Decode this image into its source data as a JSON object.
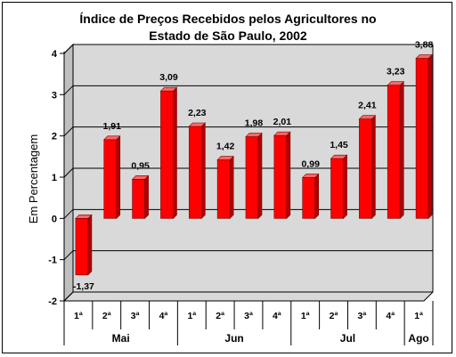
{
  "chart_data": {
    "type": "bar",
    "title_line1": "Índice de Preços Recebidos pelos Agricultores no",
    "title_line2": "Estado de São Paulo, 2002",
    "ylabel": "Em Percentagem",
    "ylim": [
      -2,
      4
    ],
    "yticks": [
      -2,
      -1,
      0,
      1,
      2,
      3,
      4
    ],
    "grid": true,
    "categories": [
      "1ª",
      "2ª",
      "3ª",
      "4ª",
      "1ª",
      "2ª",
      "3ª",
      "4ª",
      "1ª",
      "2ª",
      "3ª",
      "4ª",
      "1ª"
    ],
    "groups": [
      {
        "label": "Mai",
        "count": 4
      },
      {
        "label": "Jun",
        "count": 4
      },
      {
        "label": "Jul",
        "count": 4
      },
      {
        "label": "Ago",
        "count": 1
      }
    ],
    "values": [
      -1.37,
      1.91,
      0.95,
      3.09,
      2.23,
      1.42,
      1.98,
      2.01,
      0.99,
      1.45,
      2.41,
      3.23,
      3.88
    ],
    "data_labels": [
      "-1,37",
      "1,91",
      "0,95",
      "3,09",
      "2,23",
      "1,42",
      "1,98",
      "2,01",
      "0,99",
      "1,45",
      "2,41",
      "3,23",
      "3,88"
    ],
    "bar_color": "#ff0000",
    "bar_side_color": "#b00000",
    "bar_top_color": "#ff6666",
    "wall_color": "#d9d9d9"
  }
}
